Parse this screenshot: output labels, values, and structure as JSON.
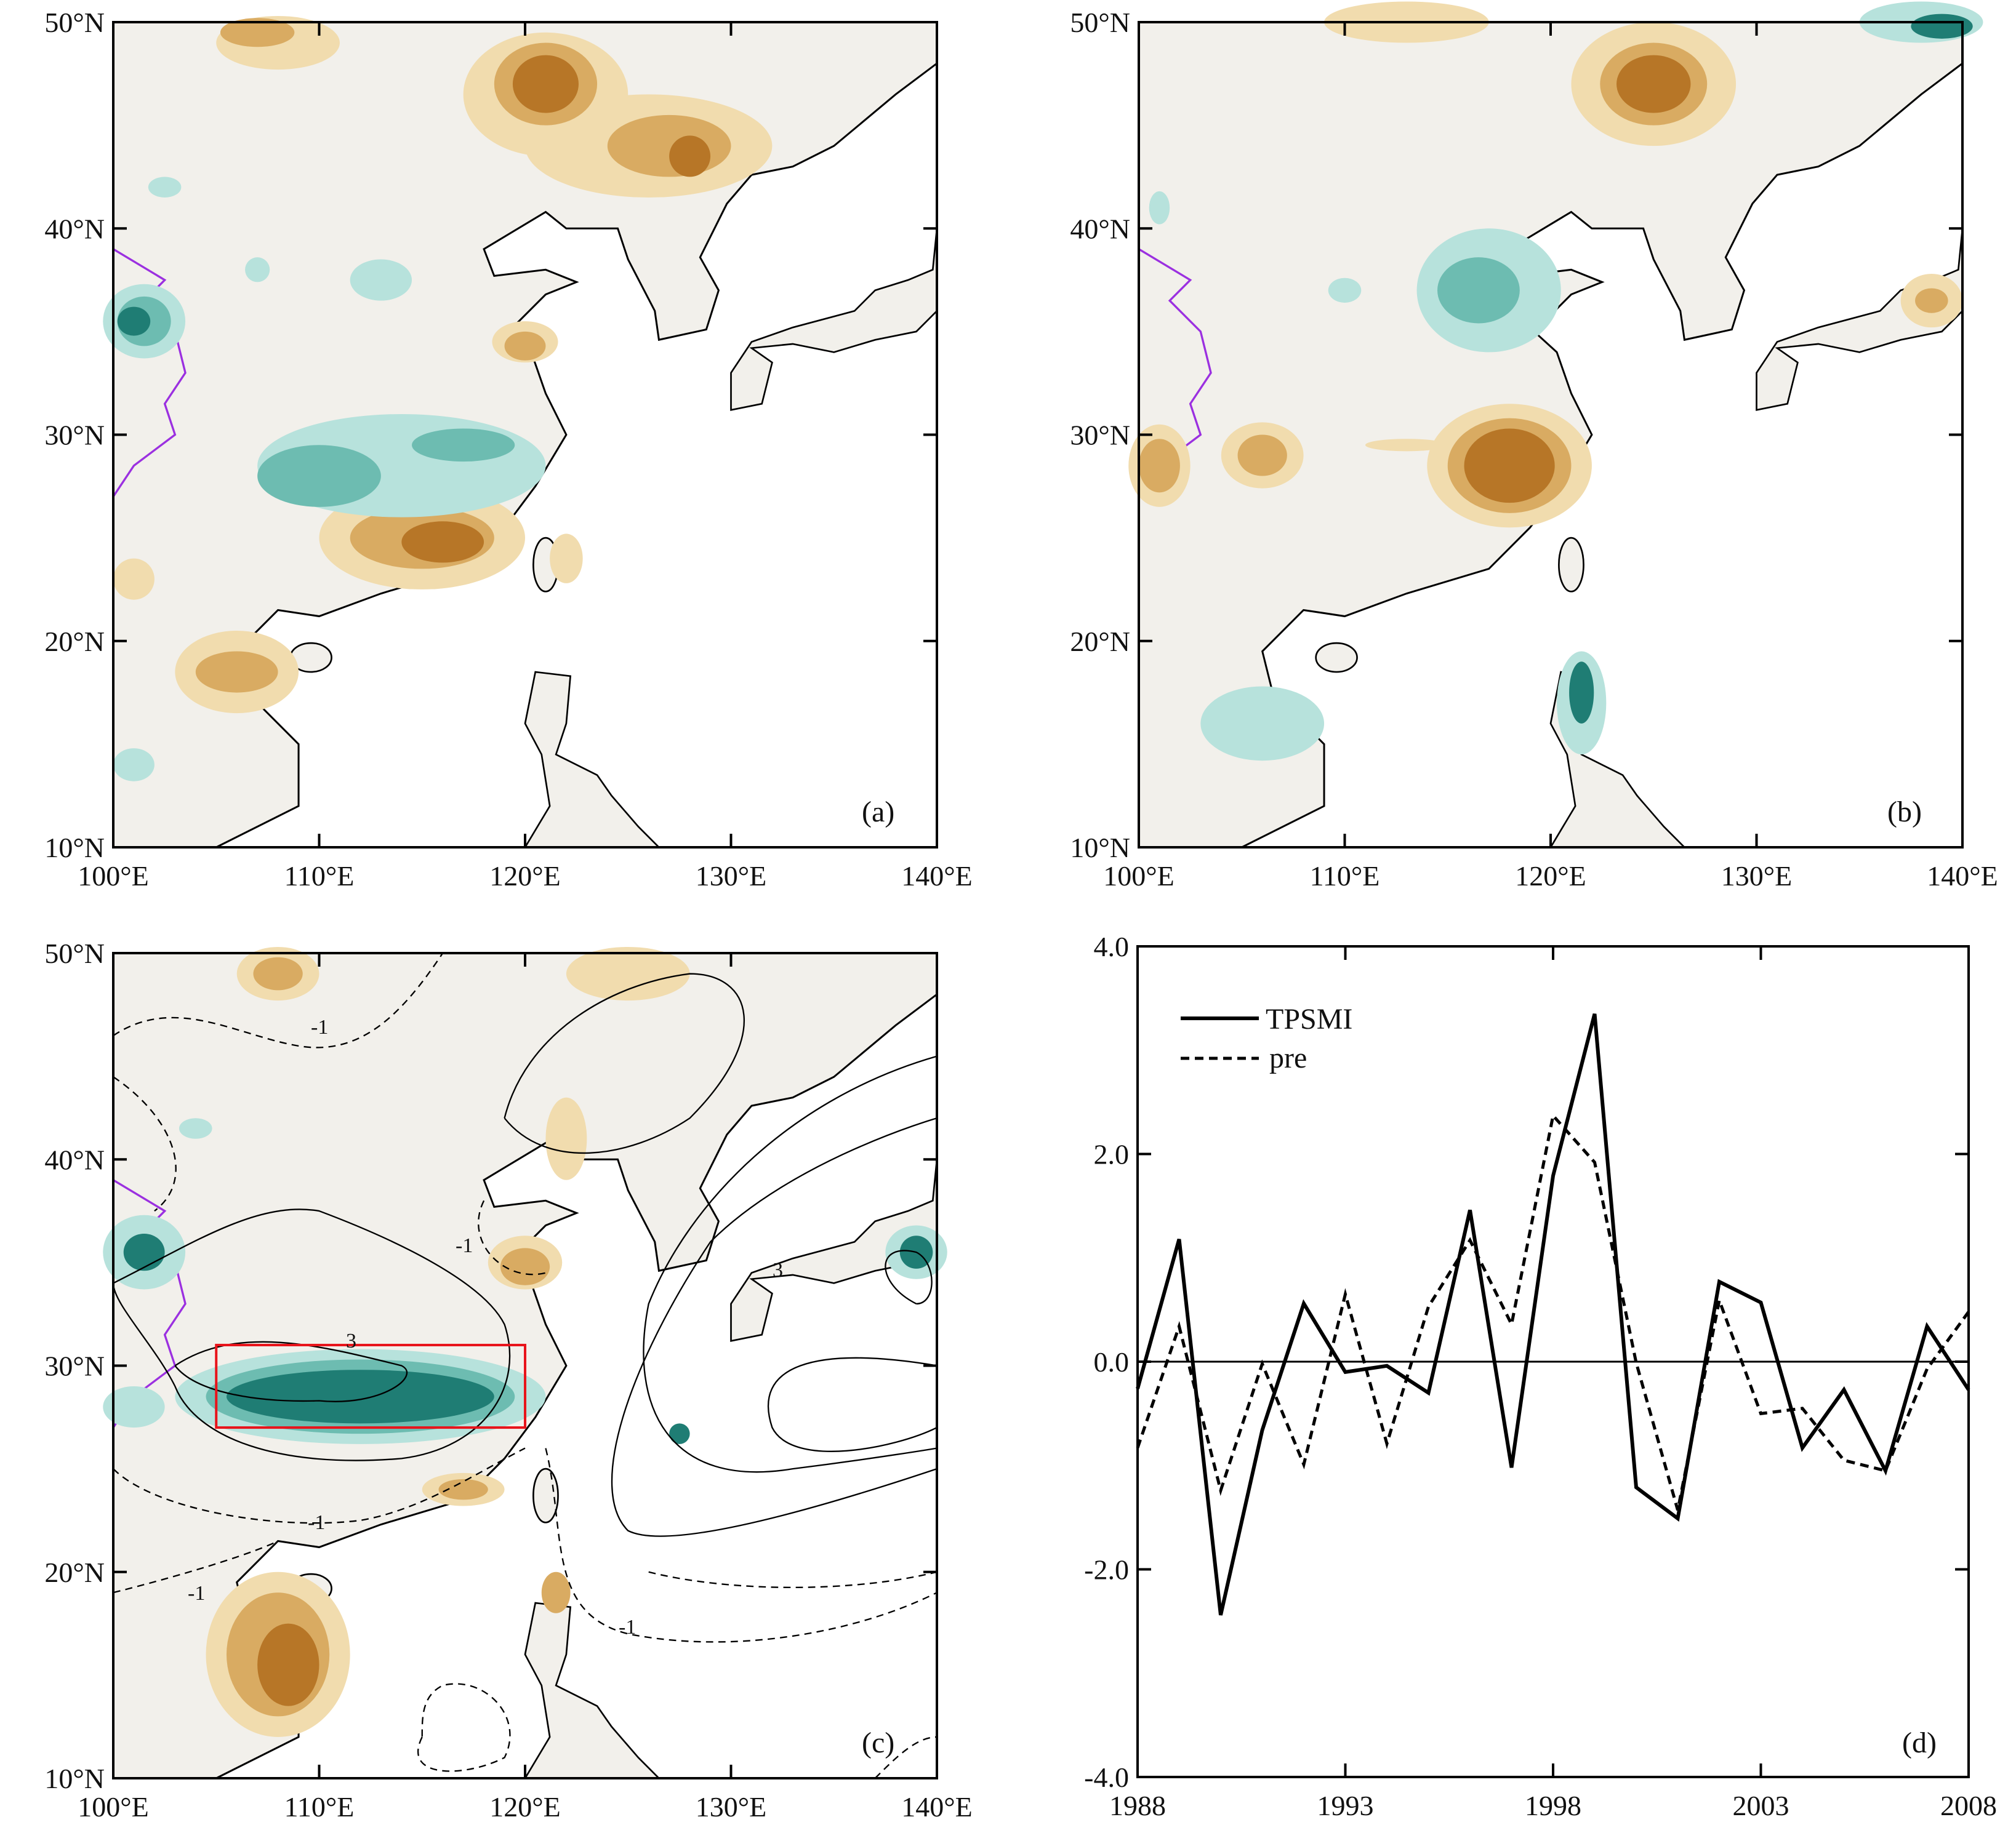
{
  "maps": {
    "lat_ticks": [
      "10°N",
      "20°N",
      "30°N",
      "40°N",
      "50°N"
    ],
    "lon_ticks": [
      "100°E",
      "110°E",
      "120°E",
      "130°E",
      "140°E"
    ],
    "panels": [
      {
        "label": "(a)"
      },
      {
        "label": "(b)"
      },
      {
        "label": "(c)",
        "contour_labels": [
          "-1",
          "3",
          "-1",
          "-1",
          "-1",
          "-1",
          "3"
        ]
      }
    ],
    "colors": {
      "land": "#f2f0eb",
      "brown": [
        "#f1dcae",
        "#d9ab62",
        "#b77627"
      ],
      "teal": [
        "#b7e2dc",
        "#6dbcb1",
        "#1f7d74"
      ],
      "box": "#e8141b",
      "tibet": "#9b30e0"
    }
  },
  "chart_data": {
    "type": "line",
    "panel_label": "(d)",
    "x": [
      1988,
      1989,
      1990,
      1991,
      1992,
      1993,
      1994,
      1995,
      1996,
      1997,
      1998,
      1999,
      2000,
      2001,
      2002,
      2003,
      2004,
      2005,
      2006,
      2007,
      2008
    ],
    "series": [
      {
        "name": "TPSMI",
        "style": "solid",
        "values": [
          -0.26,
          1.18,
          -2.44,
          -0.66,
          0.56,
          -0.1,
          -0.04,
          -0.3,
          1.46,
          -1.02,
          1.79,
          3.35,
          -1.21,
          -1.51,
          0.77,
          0.57,
          -0.83,
          -0.27,
          -1.05,
          0.34,
          -0.27
        ]
      },
      {
        "name": "pre",
        "style": "dashed",
        "values": [
          -0.83,
          0.34,
          -1.24,
          -0.02,
          -0.99,
          0.65,
          -0.79,
          0.53,
          1.17,
          0.36,
          2.37,
          1.92,
          -0.01,
          -1.43,
          0.59,
          -0.5,
          -0.45,
          -0.95,
          -1.05,
          -0.07,
          0.48
        ]
      }
    ],
    "xlim": [
      1988,
      2008
    ],
    "ylim": [
      -4,
      4
    ],
    "x_ticks": [
      "1988",
      "1993",
      "1998",
      "2003",
      "2008"
    ],
    "y_ticks": [
      "-4.0",
      "-2.0",
      "0.0",
      "2.0",
      "4.0"
    ],
    "legend": [
      "TPSMI",
      "pre"
    ],
    "legend_position": "top-left"
  }
}
